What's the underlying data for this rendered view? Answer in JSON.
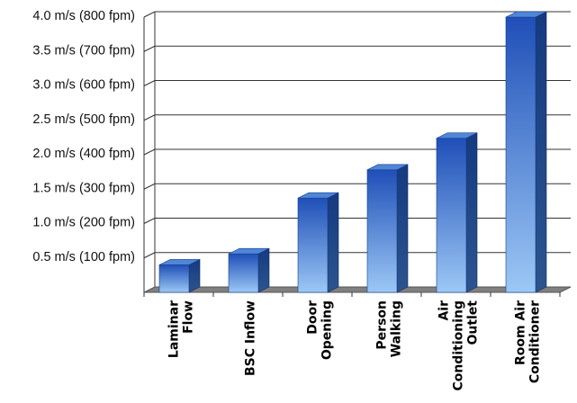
{
  "chart_data": {
    "type": "bar",
    "title": "",
    "xlabel": "",
    "ylabel": "",
    "categories": [
      [
        "Laminar",
        "Flow"
      ],
      [
        "BSC Inflow"
      ],
      [
        "Door",
        "Opening"
      ],
      [
        "Person",
        "Walking"
      ],
      [
        "Air",
        "Conditioning",
        "Outlet"
      ],
      [
        "Room Air",
        "Conditioner"
      ]
    ],
    "values": [
      0.4,
      0.56,
      1.37,
      1.78,
      2.24,
      4.0
    ],
    "ylim": [
      0,
      4.0
    ],
    "yticks": [
      {
        "value": 0.5,
        "label": "0.5 m/s (100 fpm)"
      },
      {
        "value": 1.0,
        "label": "1.0 m/s (200 fpm)"
      },
      {
        "value": 1.5,
        "label": "1.5 m/s (300 fpm)"
      },
      {
        "value": 2.0,
        "label": "2.0 m/s (400 fpm)"
      },
      {
        "value": 2.5,
        "label": "2.5 m/s (500 fpm)"
      },
      {
        "value": 3.0,
        "label": "3.0 m/s (600 fpm)"
      },
      {
        "value": 3.5,
        "label": "3.5 m/s (700 fpm)"
      },
      {
        "value": 4.0,
        "label": "4.0 m/s (800 fpm)"
      }
    ],
    "grid": true,
    "style": "3d-column",
    "colors": {
      "bar_top": "#1f4fb8",
      "bar_bottom": "#9cc8f5",
      "bar_side": "#1b3f85",
      "bar_cap": "#4f86d8",
      "grid": "#333333",
      "floor": "#808080"
    }
  }
}
